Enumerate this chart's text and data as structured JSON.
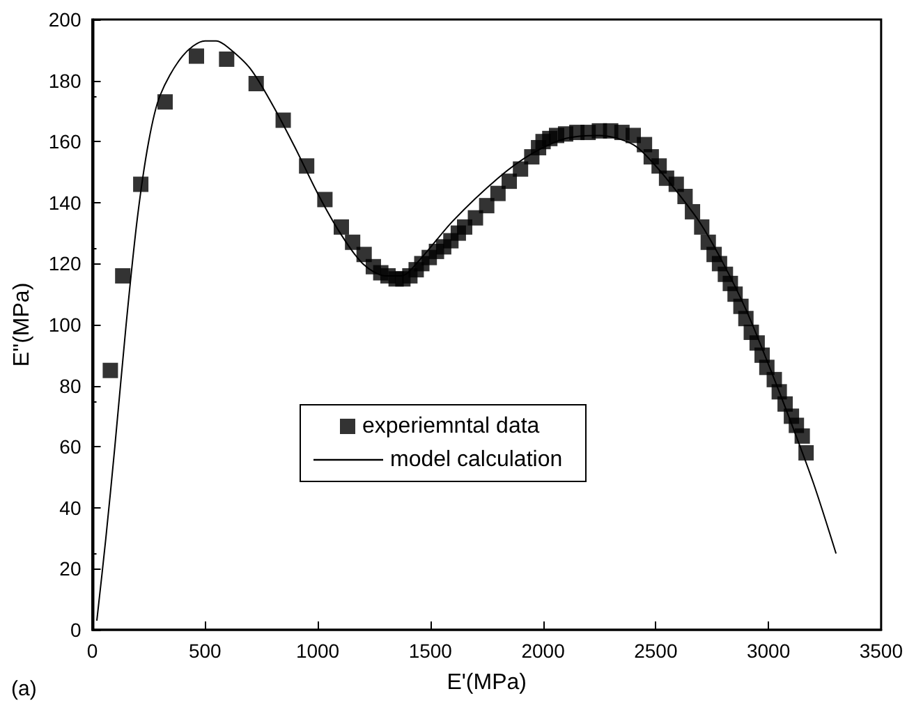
{
  "chart_data": {
    "type": "scatter",
    "xlabel": "E'(MPa)",
    "ylabel": "E''(MPa)",
    "annotations": [
      "(a)"
    ],
    "xlim": [
      0,
      3500
    ],
    "xticks": [
      0,
      500,
      1000,
      1500,
      2000,
      2500,
      3000,
      3500
    ],
    "ylim": [
      0,
      200
    ],
    "yticks": [
      0,
      20,
      40,
      60,
      80,
      100,
      120,
      140,
      160,
      180,
      200
    ],
    "grid": false,
    "legend": "center",
    "series": [
      {
        "name": "experiemntal data",
        "marker": "square",
        "color": "#000000",
        "x": [
          80,
          135,
          215,
          323,
          462,
          596,
          727,
          847,
          951,
          1032,
          1105,
          1155,
          1206,
          1247,
          1280,
          1312,
          1348,
          1378,
          1409,
          1437,
          1462,
          1495,
          1527,
          1559,
          1591,
          1624,
          1652,
          1700,
          1750,
          1800,
          1850,
          1900,
          1950,
          1980,
          2000,
          2030,
          2060,
          2100,
          2150,
          2200,
          2250,
          2300,
          2350,
          2400,
          2450,
          2480,
          2515,
          2548,
          2591,
          2630,
          2663,
          2704,
          2733,
          2759,
          2783,
          2809,
          2831,
          2852,
          2878,
          2900,
          2924,
          2950,
          2972,
          2993,
          3026,
          3048,
          3074,
          3102,
          3124,
          3150,
          3167
        ],
        "values": [
          85,
          116,
          146,
          173,
          188,
          187,
          179,
          167,
          152,
          141,
          132,
          127,
          123,
          119,
          117,
          116,
          115,
          115,
          116,
          118,
          120,
          122,
          124,
          125.5,
          127.5,
          130,
          132,
          135,
          139,
          143,
          147,
          151,
          155,
          158,
          160,
          161,
          162,
          162.5,
          163,
          163,
          163.5,
          163.5,
          163,
          162,
          159,
          155,
          152,
          148,
          146,
          142,
          137,
          132,
          127,
          123,
          120,
          116.5,
          113.5,
          110,
          106,
          102,
          97.5,
          94,
          90,
          86,
          82,
          78,
          74,
          70,
          67,
          63.5,
          58
        ]
      },
      {
        "name": "model calculation",
        "type": "line",
        "marker": "none",
        "line_style": "solid",
        "color": "#000000",
        "x": [
          20,
          60,
          100,
          150,
          200,
          250,
          300,
          400,
          500,
          550,
          600,
          700,
          800,
          900,
          1000,
          1100,
          1200,
          1300,
          1370,
          1450,
          1600,
          1800,
          1950,
          2100,
          2250,
          2400,
          2500,
          2600,
          2700,
          2800,
          2900,
          3000,
          3100,
          3200,
          3300
        ],
        "values": [
          3,
          30,
          60,
          100,
          135,
          160,
          175,
          188,
          193,
          193,
          191,
          184,
          172,
          158,
          143,
          130,
          120,
          116,
          116,
          121,
          134,
          148,
          156,
          161,
          162,
          159,
          152,
          143,
          133,
          120,
          105,
          87,
          68,
          48,
          25
        ]
      }
    ]
  }
}
